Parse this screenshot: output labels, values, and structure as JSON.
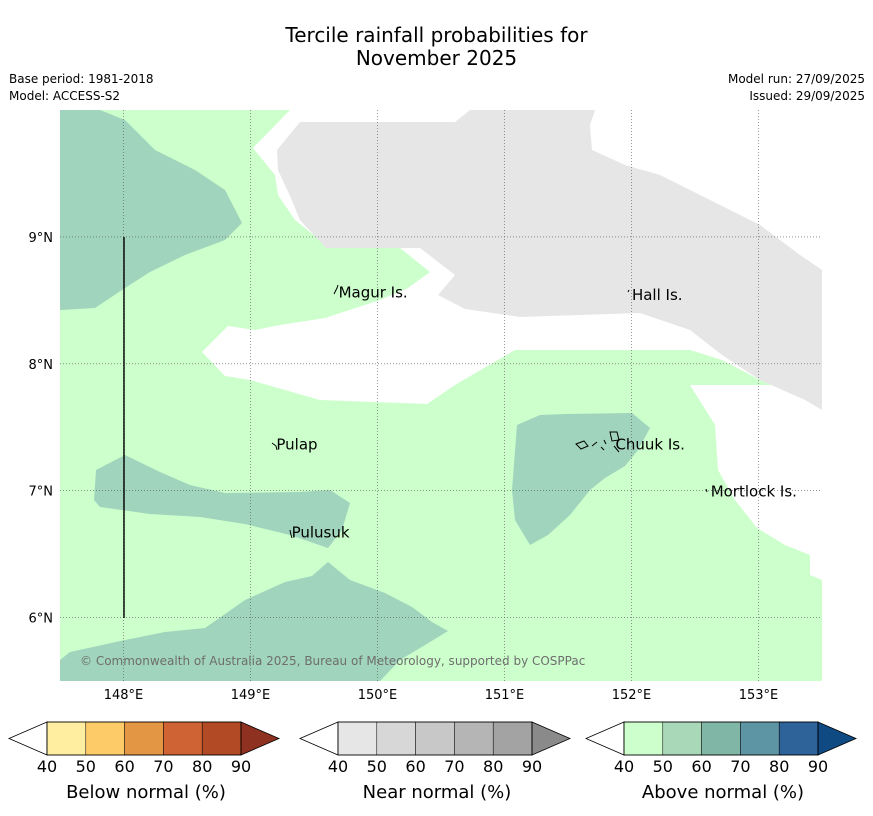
{
  "title": {
    "line1": "Tercile rainfall probabilities for",
    "line2": "November 2025"
  },
  "meta": {
    "base_period": "Base period: 1981-2018",
    "model": "Model: ACCESS-S2",
    "model_run": "Model run: 27/09/2025",
    "issued": "Issued: 29/09/2025"
  },
  "map": {
    "lon_range": [
      147.5,
      153.5
    ],
    "lat_range": [
      5.5,
      10.0
    ],
    "lon_ticks": [
      {
        "value": 148,
        "label": "148°E"
      },
      {
        "value": 149,
        "label": "149°E"
      },
      {
        "value": 150,
        "label": "150°E"
      },
      {
        "value": 151,
        "label": "151°E"
      },
      {
        "value": 152,
        "label": "152°E"
      },
      {
        "value": 153,
        "label": "153°E"
      }
    ],
    "lat_ticks": [
      {
        "value": 9,
        "label": "9°N"
      },
      {
        "value": 8,
        "label": "8°N"
      },
      {
        "value": 7,
        "label": "7°N"
      },
      {
        "value": 6,
        "label": "6°N"
      }
    ],
    "places": [
      {
        "name": "Magur Is.",
        "lon": 149.67,
        "lat": 8.57
      },
      {
        "name": "Hall Is.",
        "lon": 151.98,
        "lat": 8.55
      },
      {
        "name": "Pulap",
        "lon": 149.18,
        "lat": 7.37
      },
      {
        "name": "Chuuk Is.",
        "lon": 151.85,
        "lat": 7.37
      },
      {
        "name": "Mortlock Is.",
        "lon": 152.6,
        "lat": 7.0
      },
      {
        "name": "Pulusuk",
        "lon": 149.3,
        "lat": 6.68
      }
    ],
    "copyright": "© Commonwealth of Australia 2025, Bureau of Meteorology, supported by COSPPac"
  },
  "colors": {
    "above_40_50": "#ccffcc",
    "above_50_60": "#a0d4bc",
    "near_40_50": "#e6e6e6",
    "below_edge": "#ffffff"
  },
  "colorbars": [
    {
      "title": "Below normal (%)",
      "ticks": [
        "40",
        "50",
        "60",
        "70",
        "80",
        "90"
      ],
      "colors": [
        "#ffeda0",
        "#fecb69",
        "#e39644",
        "#cf6333",
        "#b24a25",
        "#8f3120"
      ]
    },
    {
      "title": "Near normal (%)",
      "ticks": [
        "40",
        "50",
        "60",
        "70",
        "80",
        "90"
      ],
      "colors": [
        "#e6e6e6",
        "#d7d7d7",
        "#c8c8c8",
        "#b5b5b5",
        "#a3a3a3",
        "#8a8a8a"
      ]
    },
    {
      "title": "Above normal (%)",
      "ticks": [
        "40",
        "50",
        "60",
        "70",
        "80",
        "90"
      ],
      "colors": [
        "#ccffcc",
        "#a8d8b8",
        "#80b6a6",
        "#5e95a4",
        "#2d6399",
        "#0f4a83"
      ]
    }
  ]
}
